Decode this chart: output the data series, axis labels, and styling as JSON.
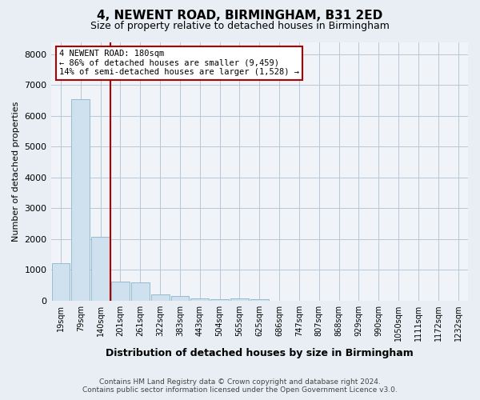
{
  "title": "4, NEWENT ROAD, BIRMINGHAM, B31 2ED",
  "subtitle": "Size of property relative to detached houses in Birmingham",
  "xlabel": "Distribution of detached houses by size in Birmingham",
  "ylabel": "Number of detached properties",
  "footnote1": "Contains HM Land Registry data © Crown copyright and database right 2024.",
  "footnote2": "Contains public sector information licensed under the Open Government Licence v3.0.",
  "categories": [
    "19sqm",
    "79sqm",
    "140sqm",
    "201sqm",
    "261sqm",
    "322sqm",
    "383sqm",
    "443sqm",
    "504sqm",
    "565sqm",
    "625sqm",
    "686sqm",
    "747sqm",
    "807sqm",
    "868sqm",
    "929sqm",
    "990sqm",
    "1050sqm",
    "1111sqm",
    "1172sqm",
    "1232sqm"
  ],
  "values": [
    1220,
    6550,
    2080,
    620,
    590,
    200,
    150,
    60,
    40,
    80,
    40,
    0,
    0,
    0,
    0,
    0,
    0,
    0,
    0,
    0,
    0
  ],
  "bar_color": "#cfe1ee",
  "bar_edge_color": "#88b4cc",
  "red_line_x": 3.0,
  "annotation_text": "4 NEWENT ROAD: 180sqm\n← 86% of detached houses are smaller (9,459)\n14% of semi-detached houses are larger (1,528) →",
  "annotation_box_color": "#b00000",
  "ylim": [
    0,
    8400
  ],
  "yticks": [
    0,
    1000,
    2000,
    3000,
    4000,
    5000,
    6000,
    7000,
    8000
  ],
  "bg_color": "#e8eef4",
  "plot_bg_color": "#f0f4f8",
  "grid_color": "#b8c8d8"
}
